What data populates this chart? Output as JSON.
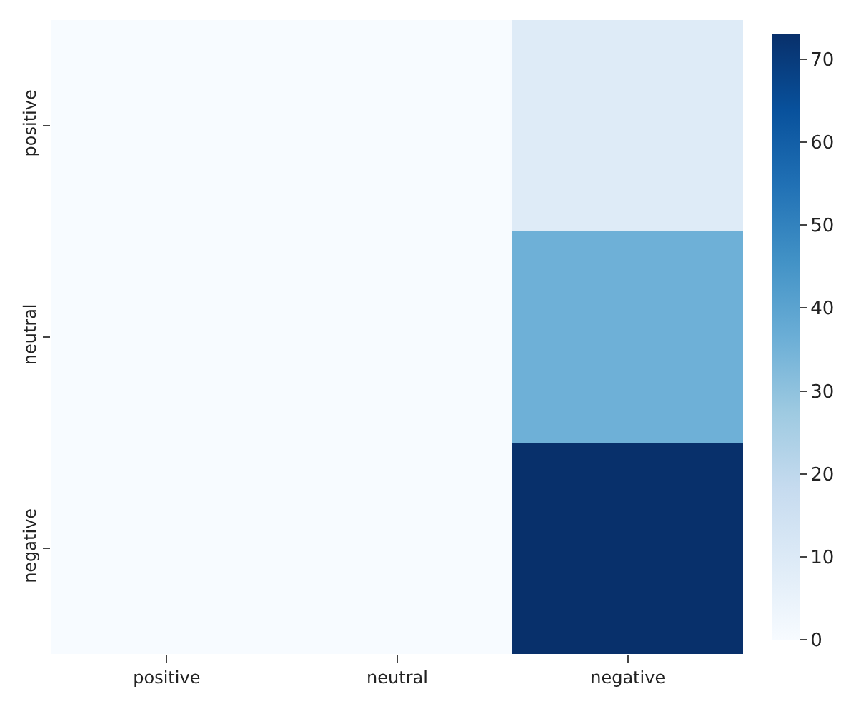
{
  "chart_data": {
    "type": "heatmap",
    "categories": [
      "positive",
      "neutral",
      "negative"
    ],
    "y_categories": [
      "positive",
      "neutral",
      "negative"
    ],
    "cells": [
      [
        0,
        0,
        9
      ],
      [
        0,
        0,
        36
      ],
      [
        0,
        0,
        73
      ]
    ],
    "clim": [
      0,
      73
    ],
    "cticks": [
      0,
      10,
      20,
      30,
      40,
      50,
      60,
      70
    ]
  }
}
